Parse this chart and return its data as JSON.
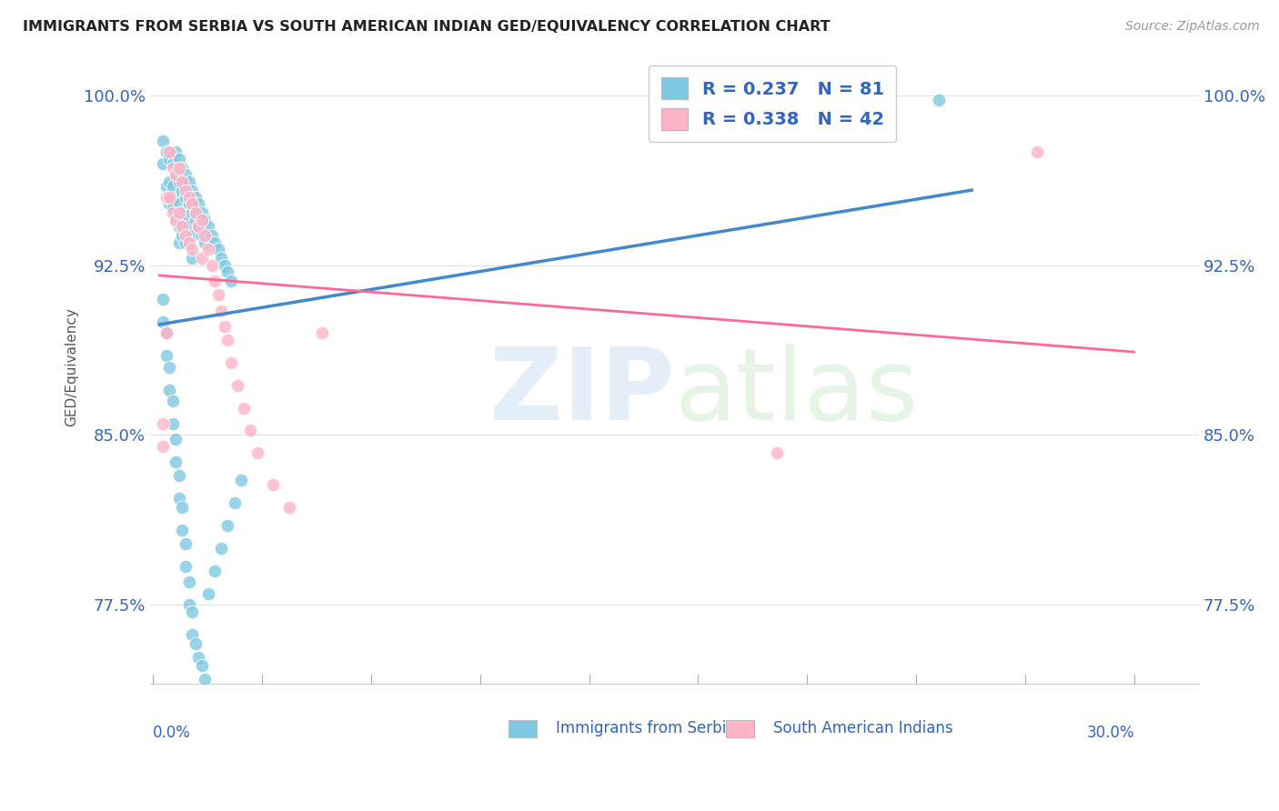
{
  "title": "IMMIGRANTS FROM SERBIA VS SOUTH AMERICAN INDIAN GED/EQUIVALENCY CORRELATION CHART",
  "source": "Source: ZipAtlas.com",
  "ylabel": "GED/Equivalency",
  "yticks_vals": [
    0.775,
    0.85,
    0.925,
    1.0
  ],
  "yticks_labels": [
    "77.5%",
    "85.0%",
    "92.5%",
    "100.0%"
  ],
  "ylim": [
    0.74,
    1.02
  ],
  "xlim": [
    -0.003,
    0.32
  ],
  "xmax": 0.3,
  "r_serbia": 0.237,
  "n_serbia": 81,
  "r_indian": 0.338,
  "n_indian": 42,
  "color_serbia": "#7ec8e3",
  "color_indian": "#ffb3c6",
  "color_serbia_line": "#4488cc",
  "color_indian_line": "#ff6699",
  "color_text_blue": "#3366bb",
  "background_color": "#ffffff",
  "grid_color": "#e0e0e0",
  "serbia_x": [
    0.001,
    0.001,
    0.002,
    0.002,
    0.003,
    0.003,
    0.003,
    0.004,
    0.004,
    0.004,
    0.005,
    0.005,
    0.005,
    0.005,
    0.006,
    0.006,
    0.006,
    0.006,
    0.006,
    0.007,
    0.007,
    0.007,
    0.007,
    0.008,
    0.008,
    0.008,
    0.008,
    0.009,
    0.009,
    0.009,
    0.01,
    0.01,
    0.01,
    0.01,
    0.011,
    0.011,
    0.012,
    0.012,
    0.013,
    0.013,
    0.014,
    0.014,
    0.015,
    0.016,
    0.017,
    0.018,
    0.019,
    0.02,
    0.021,
    0.022,
    0.001,
    0.001,
    0.002,
    0.002,
    0.003,
    0.003,
    0.004,
    0.004,
    0.005,
    0.005,
    0.006,
    0.006,
    0.007,
    0.007,
    0.008,
    0.008,
    0.009,
    0.009,
    0.01,
    0.01,
    0.011,
    0.012,
    0.013,
    0.014,
    0.015,
    0.017,
    0.019,
    0.021,
    0.023,
    0.025,
    0.24
  ],
  "serbia_y": [
    0.98,
    0.97,
    0.975,
    0.96,
    0.972,
    0.962,
    0.952,
    0.97,
    0.96,
    0.95,
    0.975,
    0.965,
    0.955,
    0.945,
    0.972,
    0.962,
    0.952,
    0.942,
    0.935,
    0.968,
    0.958,
    0.948,
    0.938,
    0.965,
    0.955,
    0.945,
    0.935,
    0.962,
    0.952,
    0.942,
    0.958,
    0.948,
    0.938,
    0.928,
    0.955,
    0.945,
    0.952,
    0.942,
    0.948,
    0.938,
    0.945,
    0.935,
    0.942,
    0.938,
    0.935,
    0.932,
    0.928,
    0.925,
    0.922,
    0.918,
    0.91,
    0.9,
    0.895,
    0.885,
    0.88,
    0.87,
    0.865,
    0.855,
    0.848,
    0.838,
    0.832,
    0.822,
    0.818,
    0.808,
    0.802,
    0.792,
    0.785,
    0.775,
    0.772,
    0.762,
    0.758,
    0.752,
    0.748,
    0.742,
    0.78,
    0.79,
    0.8,
    0.81,
    0.82,
    0.83,
    0.998
  ],
  "india_x": [
    0.001,
    0.002,
    0.003,
    0.003,
    0.004,
    0.004,
    0.005,
    0.005,
    0.006,
    0.006,
    0.007,
    0.007,
    0.008,
    0.008,
    0.009,
    0.009,
    0.01,
    0.01,
    0.011,
    0.012,
    0.013,
    0.013,
    0.014,
    0.015,
    0.016,
    0.017,
    0.018,
    0.019,
    0.02,
    0.021,
    0.022,
    0.024,
    0.026,
    0.028,
    0.03,
    0.035,
    0.04,
    0.05,
    0.001,
    0.002,
    0.19,
    0.27
  ],
  "india_y": [
    0.855,
    0.955,
    0.975,
    0.955,
    0.968,
    0.948,
    0.965,
    0.945,
    0.968,
    0.948,
    0.962,
    0.942,
    0.958,
    0.938,
    0.955,
    0.935,
    0.952,
    0.932,
    0.948,
    0.942,
    0.945,
    0.928,
    0.938,
    0.932,
    0.925,
    0.918,
    0.912,
    0.905,
    0.898,
    0.892,
    0.882,
    0.872,
    0.862,
    0.852,
    0.842,
    0.828,
    0.818,
    0.895,
    0.845,
    0.895,
    0.842,
    0.975
  ]
}
